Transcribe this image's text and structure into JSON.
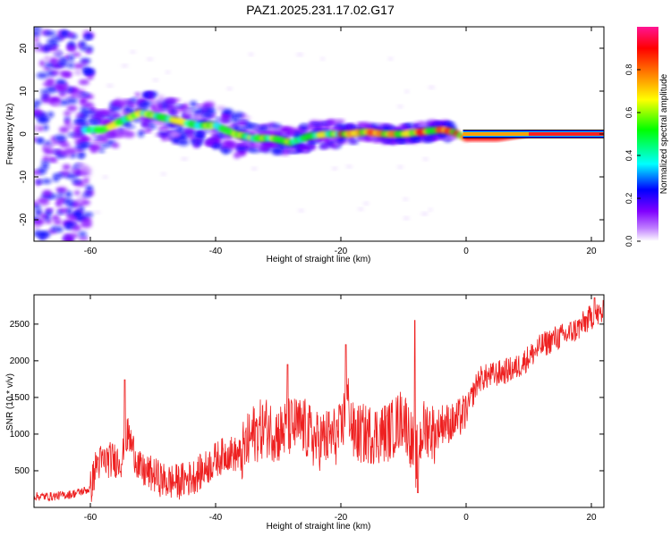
{
  "title": "PAZ1.2025.231.17.02.G17",
  "chart_data": [
    {
      "type": "heatmap",
      "title": "PAZ1.2025.231.17.02.G17",
      "xlabel": "Height of straight line (km)",
      "ylabel": "Frequency (Hz)",
      "xlim": [
        -69,
        22
      ],
      "ylim": [
        -25,
        25
      ],
      "xticks": [
        -60,
        -40,
        -20,
        0,
        20
      ],
      "yticks": [
        -20,
        -10,
        0,
        10,
        20
      ],
      "colorbar": {
        "label": "Normalized spectral amplitude",
        "range": [
          0,
          1
        ],
        "ticks": [
          "0.0",
          "0.2",
          "0.4",
          "0.6",
          "0.8"
        ],
        "colors": [
          "#ffffff",
          "#8000ff",
          "#0000ff",
          "#00ffff",
          "#00ff00",
          "#ffff00",
          "#ff8000",
          "#ff0000",
          "#ff1493"
        ]
      },
      "ridge": {
        "x": [
          -62,
          -58,
          -55,
          -52,
          -49,
          -46,
          -43,
          -40,
          -37,
          -34,
          -31,
          -28,
          -25,
          -22,
          -19,
          -16,
          -13,
          -10,
          -7,
          -4,
          -2,
          0,
          5,
          10,
          15,
          22
        ],
        "f": [
          1,
          1,
          3,
          5,
          4,
          3,
          2,
          2,
          0,
          -1,
          -1,
          -2,
          -0.5,
          0,
          0,
          0.5,
          0,
          0,
          0.5,
          1,
          0.5,
          -1,
          -1,
          0,
          0,
          0
        ]
      }
    },
    {
      "type": "line",
      "xlabel": "Height of straight line (km)",
      "ylabel": "SNR (10 * v/v)",
      "xlim": [
        -69,
        22
      ],
      "ylim": [
        0,
        2900
      ],
      "xticks": [
        -60,
        -40,
        -20,
        0,
        20
      ],
      "yticks": [
        500,
        1000,
        1500,
        2000,
        2500
      ],
      "series": [
        {
          "name": "SNR",
          "color": "#ee2020",
          "x": [
            -69,
            -66,
            -63,
            -60,
            -59,
            -57,
            -55,
            -54,
            -52,
            -50,
            -48,
            -46,
            -44,
            -42,
            -40,
            -38,
            -36,
            -34,
            -32,
            -30,
            -28,
            -26,
            -24,
            -22,
            -20,
            -19,
            -18,
            -16,
            -14,
            -12,
            -10,
            -9,
            -8,
            -7,
            -6,
            -5,
            -4,
            -2,
            0,
            2,
            4,
            6,
            8,
            10,
            12,
            14,
            16,
            18,
            20,
            22
          ],
          "y": [
            150,
            150,
            180,
            250,
            600,
            650,
            650,
            1000,
            500,
            450,
            350,
            350,
            400,
            500,
            650,
            750,
            700,
            1000,
            1100,
            1000,
            1100,
            1100,
            900,
            950,
            1000,
            1500,
            1000,
            1000,
            1000,
            1050,
            1250,
            1000,
            650,
            1050,
            1100,
            1000,
            1150,
            1150,
            1300,
            1750,
            1800,
            1850,
            1900,
            2050,
            2200,
            2300,
            2350,
            2450,
            2600,
            2650
          ]
        }
      ]
    }
  ]
}
